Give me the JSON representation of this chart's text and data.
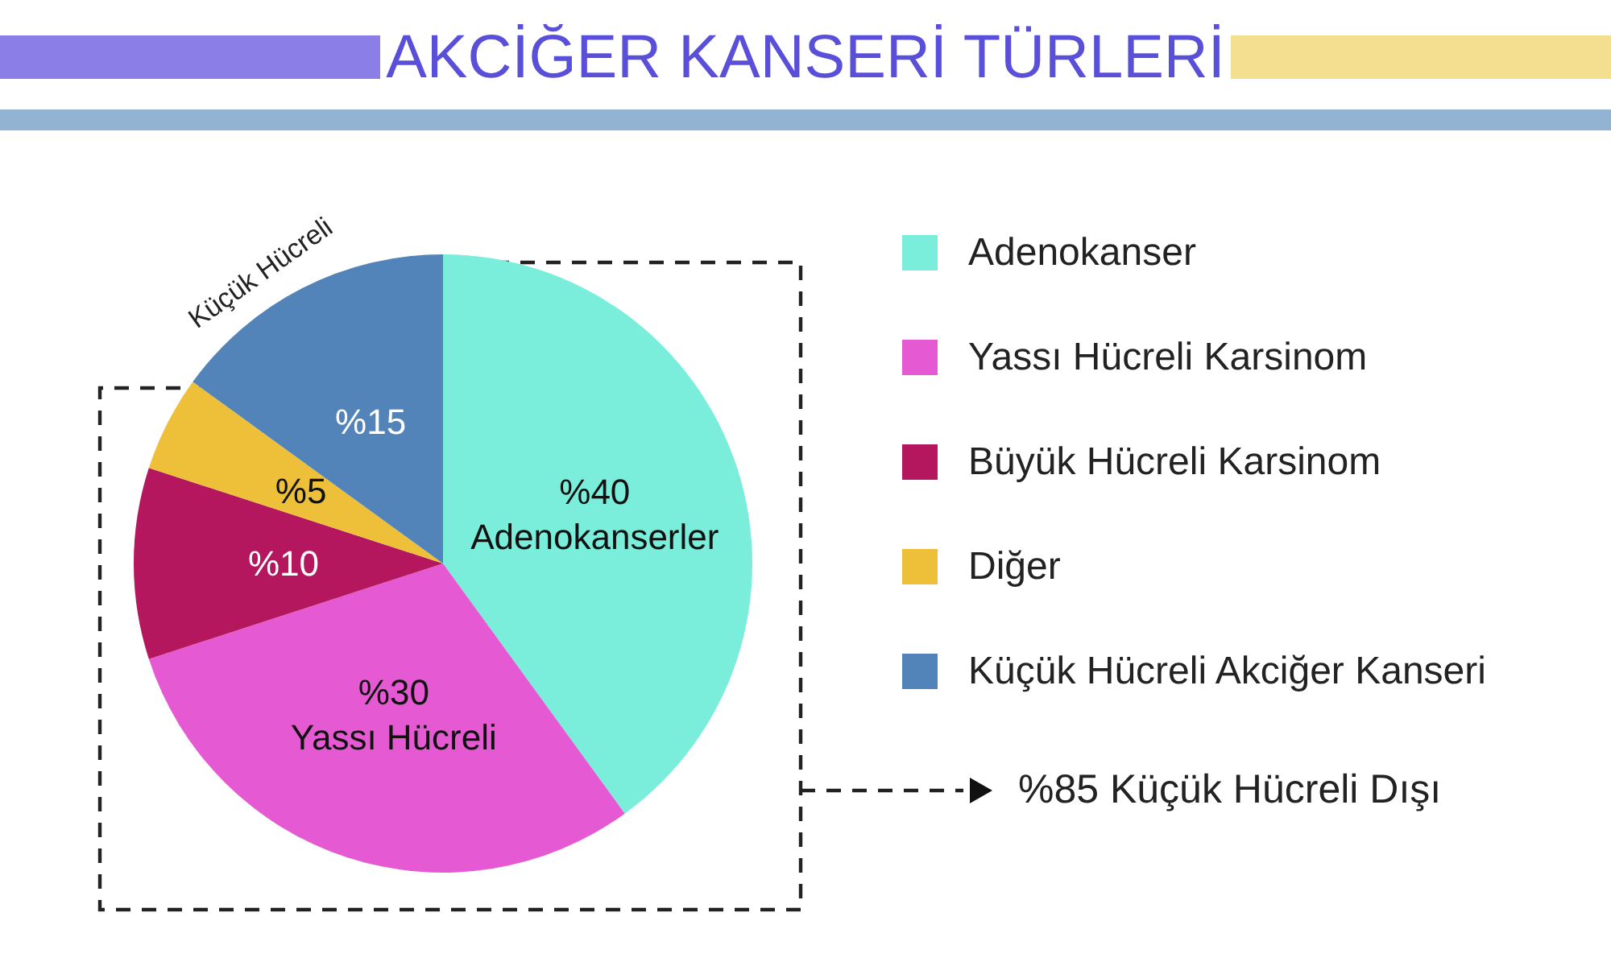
{
  "chart_data": {
    "type": "pie",
    "title": "AKCİĞER KANSERİ TÜRLERİ",
    "categories": [
      "Adenokanser",
      "Yassı Hücreli Karsinom",
      "Büyük Hücreli Karsinom",
      "Diğer",
      "Küçük Hücreli Akciğer Kanseri"
    ],
    "values": [
      40,
      30,
      10,
      5,
      15
    ],
    "colors": [
      "#7aeedb",
      "#e55ad2",
      "#b5175f",
      "#eec03a",
      "#5283b9"
    ],
    "value_labels": [
      "%40\nAdenokanserler",
      "%30\nYassı Hücreli",
      "%10",
      "%5",
      "%15"
    ],
    "annotations": [
      "Küçük Hücreli",
      "%85 Küçük Hücreli Dışı"
    ],
    "legend": "right"
  }
}
